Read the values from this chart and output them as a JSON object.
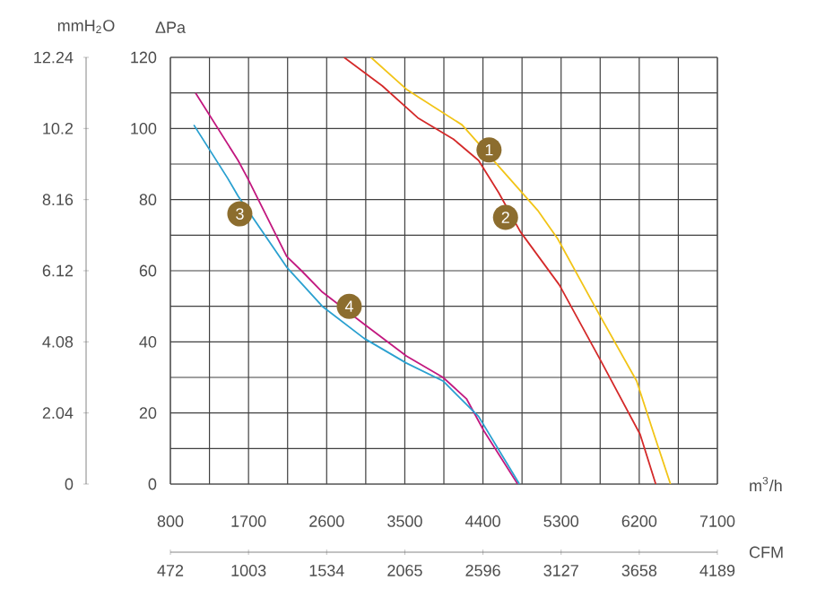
{
  "chart_data": {
    "type": "line",
    "xlabel": "m$^{3}$/h",
    "x2label": "CFM",
    "ylabel": "ΔPa",
    "y2label": "mmH$_{2}$O",
    "xlim": [
      800,
      7100
    ],
    "xticks": [
      800,
      1700,
      2600,
      3500,
      4400,
      5300,
      6200,
      7100
    ],
    "x2lim": [
      472,
      4189
    ],
    "x2ticks": [
      472,
      1003,
      1534,
      2065,
      2596,
      3127,
      3658,
      4189
    ],
    "ylim": [
      0,
      120
    ],
    "yticks": [
      0,
      20,
      40,
      60,
      80,
      100,
      120
    ],
    "y2lim": [
      0,
      12.24
    ],
    "y2ticks": [
      0,
      2.04,
      4.08,
      6.12,
      8.16,
      10.2,
      12.24
    ],
    "grid": true,
    "series": [
      {
        "color": "#f2c417",
        "x": [
          3110,
          3520,
          4160,
          5030,
          5260,
          5710,
          6170,
          6370,
          6560
        ],
        "values": [
          120,
          111,
          101,
          77,
          69,
          49,
          29,
          14,
          0
        ]
      },
      {
        "color": "#d42a2a",
        "x": [
          2800,
          3240,
          3650,
          4060,
          4350,
          4580,
          4830,
          5280,
          5750,
          6210,
          6390
        ],
        "values": [
          120,
          112,
          103,
          97,
          91,
          82,
          71,
          56,
          35,
          14,
          0
        ]
      },
      {
        "color": "#c2187f",
        "x": [
          1090,
          1580,
          1690,
          2140,
          2310,
          2550,
          3030,
          3520,
          3940,
          4210,
          4410,
          4800
        ],
        "values": [
          110,
          91,
          86,
          64,
          60,
          54,
          45,
          36,
          30,
          24,
          15,
          0
        ]
      },
      {
        "color": "#2aa0d0",
        "x": [
          1070,
          1460,
          1580,
          2140,
          2550,
          3030,
          3520,
          3940,
          4350,
          4820
        ],
        "values": [
          101,
          86,
          81,
          61,
          50,
          41,
          34,
          29,
          19,
          0
        ]
      }
    ],
    "annotations": [
      {
        "text": "1",
        "x": 4470,
        "y": 94
      },
      {
        "text": "2",
        "x": 4660,
        "y": 75
      },
      {
        "text": "3",
        "x": 1600,
        "y": 76
      },
      {
        "text": "4",
        "x": 2860,
        "y": 50
      }
    ]
  }
}
